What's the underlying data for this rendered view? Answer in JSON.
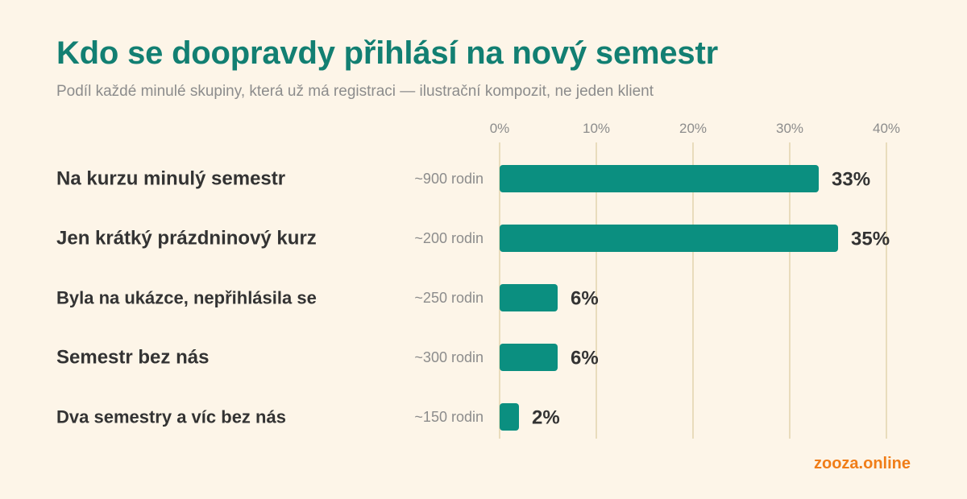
{
  "title": "Kdo se doopravdy přihlásí na nový semestr",
  "subtitle": "Podíl každé minulé skupiny, která už má registraci — ilustrační kompozit, ne jeden klient",
  "brand": "zooza.online",
  "colors": {
    "background": "#fdf5e8",
    "title": "#127f72",
    "bar": "#0b8f80",
    "gridline": "#e9dcbc",
    "brand": "#f07d18"
  },
  "chart_data": {
    "type": "bar",
    "orientation": "horizontal",
    "categories": [
      "Na kurzu minulý semestr",
      "Jen krátký prázdninový kurz",
      "Byla na ukázce, nepřihlásila se",
      "Semestr bez nás",
      "Dva semestry a víc bez nás"
    ],
    "counts": [
      "~900 rodin",
      "~200 rodin",
      "~250 rodin",
      "~300 rodin",
      "~150 rodin"
    ],
    "values": [
      33,
      35,
      6,
      6,
      2
    ],
    "value_labels": [
      "33%",
      "35%",
      "6%",
      "6%",
      "2%"
    ],
    "xlim": [
      0,
      40
    ],
    "ticks": [
      0,
      10,
      20,
      30,
      40
    ],
    "tick_labels": [
      "0%",
      "10%",
      "20%",
      "30%",
      "40%"
    ],
    "grid": true,
    "legend": "none"
  }
}
